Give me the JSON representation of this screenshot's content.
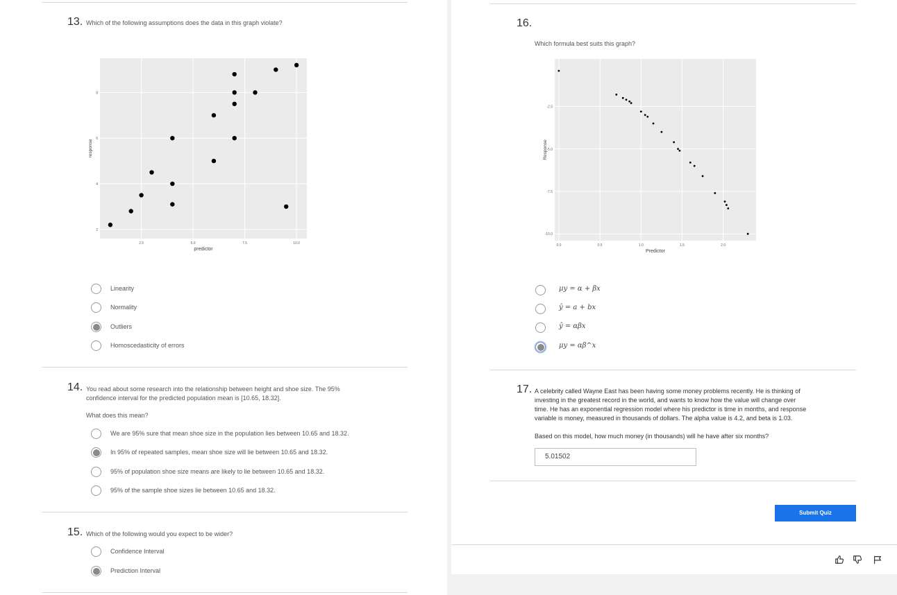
{
  "q13": {
    "number": "13.",
    "text": "Which of the following assumptions does the data in this graph violate?",
    "options": [
      {
        "label": "Linearity",
        "selected": false
      },
      {
        "label": "Normality",
        "selected": false
      },
      {
        "label": "Outliers",
        "selected": true
      },
      {
        "label": "Homoscedasticity of errors",
        "selected": false
      }
    ]
  },
  "q14": {
    "number": "14.",
    "text_line1": "You read about some research into the relationship between height and shoe size. The 95%",
    "text_line2": "confidence interval for the predicted population mean is [10.65, 18.32].",
    "prompt": "What does this mean?",
    "options": [
      {
        "label": "We are 95% sure that mean shoe size in the population lies between 10.65 and 18.32.",
        "selected": false
      },
      {
        "label": "In 95% of repeated samples, mean shoe size will lie between 10.65 and 18.32.",
        "selected": true
      },
      {
        "label": "95% of population shoe size means are likely to lie between 10.65 and 18.32.",
        "selected": false
      },
      {
        "label": "95% of the sample shoe sizes lie between 10.65 and 18.32.",
        "selected": false
      }
    ]
  },
  "q15": {
    "number": "15.",
    "text": "Which of the following would you expect to be wider?",
    "options": [
      {
        "label": "Confidence Interval",
        "selected": false
      },
      {
        "label": "Prediction Interval",
        "selected": true
      }
    ]
  },
  "q16": {
    "number": "16.",
    "text": "Which formula best suits this graph?",
    "options": [
      {
        "label": "μy = α + βx",
        "selected": false
      },
      {
        "label": "ŷ = a + bx",
        "selected": false
      },
      {
        "label": "ŷ = αβx",
        "selected": false
      },
      {
        "label": "μy = αβ^x",
        "selected": true
      }
    ]
  },
  "q17": {
    "number": "17.",
    "text_lines": [
      "A celebrity called Wayne East has been having some money problems recently. He is thinking of",
      "investing in the greatest record in the world, and wants to know how the value will change over",
      "time. He has an exponential regression model where his predictor is time in months, and response",
      "variable is money, measured in thousands of dollars. The alpha value is 4.2, and beta is 1.03."
    ],
    "prompt": "Based on this model, how much money (in thousands) will he have after six months?",
    "answer": "5.01502"
  },
  "submit_label": "Submit Quiz",
  "colors": {
    "accent": "#1a73e8",
    "plot_bg": "#ebebeb",
    "point": "#000000"
  },
  "chart_data": [
    {
      "type": "scatter",
      "xlabel": "predictor",
      "ylabel": "response",
      "x_ticks": [
        "2.5",
        "5.0",
        "7.5",
        "10.0"
      ],
      "y_ticks": [
        "2",
        "4",
        "6",
        "8"
      ],
      "xlim": [
        0.5,
        10.5
      ],
      "ylim": [
        1.6,
        9.5
      ],
      "points": [
        [
          1.0,
          2.2
        ],
        [
          2.0,
          2.8
        ],
        [
          2.5,
          3.5
        ],
        [
          3.0,
          4.5
        ],
        [
          4.0,
          3.1
        ],
        [
          4.0,
          4.0
        ],
        [
          4.0,
          6.0
        ],
        [
          6.0,
          5.0
        ],
        [
          6.0,
          7.0
        ],
        [
          7.0,
          6.0
        ],
        [
          7.0,
          7.5
        ],
        [
          7.0,
          8.0
        ],
        [
          7.0,
          8.8
        ],
        [
          8.0,
          8.0
        ],
        [
          9.0,
          9.0
        ],
        [
          10.0,
          9.2
        ],
        [
          9.5,
          3.0
        ]
      ]
    },
    {
      "type": "scatter",
      "xlabel": "Predictor",
      "ylabel": "Response",
      "x_ticks": [
        "0.0",
        "0.5",
        "1.0",
        "1.5",
        "2.0"
      ],
      "y_ticks": [
        "-2.5",
        "-5.0",
        "-7.5",
        "-10.0"
      ],
      "xlim": [
        -0.05,
        2.4
      ],
      "ylim": [
        -10.4,
        0.3
      ],
      "points": [
        [
          0.0,
          -0.4
        ],
        [
          0.7,
          -1.8
        ],
        [
          0.78,
          -2.0
        ],
        [
          0.82,
          -2.1
        ],
        [
          0.86,
          -2.2
        ],
        [
          0.88,
          -2.3
        ],
        [
          1.0,
          -2.8
        ],
        [
          1.05,
          -3.0
        ],
        [
          1.08,
          -3.1
        ],
        [
          1.15,
          -3.5
        ],
        [
          1.25,
          -4.0
        ],
        [
          1.4,
          -4.6
        ],
        [
          1.45,
          -5.0
        ],
        [
          1.47,
          -5.1
        ],
        [
          1.6,
          -5.8
        ],
        [
          1.65,
          -6.0
        ],
        [
          1.75,
          -6.6
        ],
        [
          1.9,
          -7.6
        ],
        [
          2.02,
          -8.1
        ],
        [
          2.04,
          -8.3
        ],
        [
          2.06,
          -8.5
        ],
        [
          2.3,
          -10.0
        ]
      ]
    }
  ]
}
